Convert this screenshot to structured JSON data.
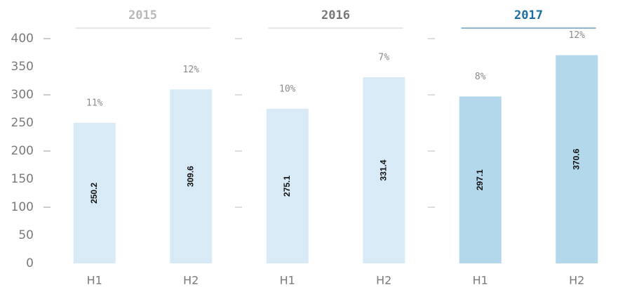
{
  "chart_data": {
    "type": "bar",
    "categories": [
      "H1",
      "H2",
      "H1",
      "H2",
      "H1",
      "H2"
    ],
    "values": [
      250.2,
      309.6,
      275.1,
      331.4,
      297.1,
      370.6
    ],
    "annotations": [
      "11%",
      "12%",
      "10%",
      "7%",
      "8%",
      "12%"
    ],
    "colors": [
      "#d8eaf5",
      "#d8eaf5",
      "#d8eaf5",
      "#d8eaf5",
      "#b3d7eb",
      "#b3d7eb"
    ],
    "groups": [
      {
        "name": "2015",
        "color": "#b8b8b8"
      },
      {
        "name": "2016",
        "color": "#777777"
      },
      {
        "name": "2017",
        "color": "#1a6fa0"
      }
    ],
    "ylim": [
      0,
      400
    ],
    "yticks": [
      0,
      50,
      100,
      150,
      200,
      250,
      300,
      350,
      400
    ]
  }
}
